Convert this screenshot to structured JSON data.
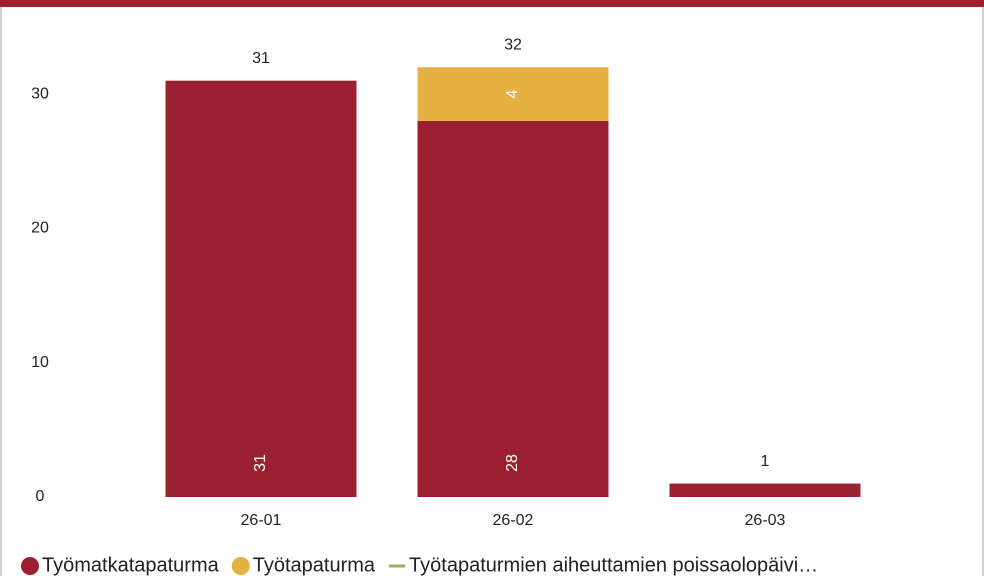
{
  "chart_data": {
    "type": "bar",
    "stacked": true,
    "categories": [
      "26-01",
      "26-02",
      "26-03"
    ],
    "series": [
      {
        "name": "Työmatkatapaturma",
        "color": "#9b2130",
        "type": "bar",
        "values": [
          31,
          28,
          1
        ]
      },
      {
        "name": "Työtapaturma",
        "color": "#e6b143",
        "type": "bar",
        "values": [
          null,
          4,
          null
        ]
      },
      {
        "name": "Työtapaturmien aiheuttamien poissaolopäivi…",
        "color": "#8fb25a",
        "type": "line",
        "values": [
          null,
          null,
          null
        ]
      }
    ],
    "totals": [
      31,
      32,
      1
    ],
    "ylim": [
      0,
      35
    ],
    "yticks": [
      0,
      10,
      20,
      30
    ],
    "grid": false,
    "legend": "bottom-left"
  }
}
